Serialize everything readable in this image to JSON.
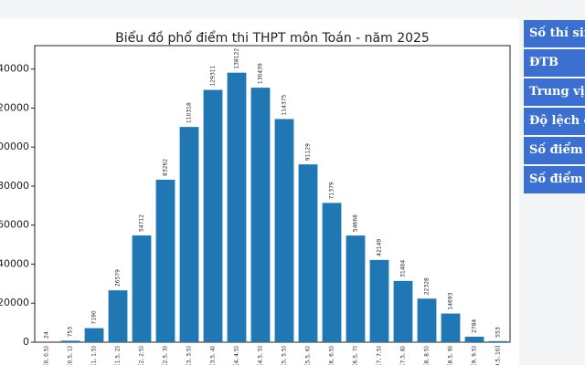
{
  "chart_data": {
    "type": "bar",
    "title": "Biểu đồ phổ điểm thi THPT môn Toán - năm 2025",
    "categories": [
      "[0, 0.5)",
      "[0.5, 1)",
      "[1, 1.5)",
      "[1.5, 2)",
      "[2, 2.5)",
      "[2.5, 3)",
      "[3, 3.5)",
      "[3.5, 4)",
      "[4, 4.5)",
      "[4.5, 5)",
      "[5, 5.5)",
      "[5.5, 6)",
      "[6, 6.5)",
      "[6.5, 7)",
      "[7, 7.5)",
      "[7.5, 8)",
      "[8, 8.5)",
      "[8.5, 9)",
      "[9, 9.5)",
      "[9.5, 10]"
    ],
    "values": [
      24,
      753,
      7190,
      26579,
      54712,
      83262,
      110318,
      129311,
      138122,
      130439,
      114375,
      91129,
      71379,
      54668,
      42149,
      31404,
      22328,
      14693,
      2784,
      553
    ],
    "color": "#1f77b4",
    "ylim": [
      0,
      152000
    ],
    "yticks": [
      0,
      20000,
      40000,
      60000,
      80000,
      100000,
      120000,
      140000
    ]
  },
  "side_table": {
    "rows": [
      "Số thí sin",
      "ĐTB",
      "Trung vị",
      "Độ lệch c",
      "Số điểm 1",
      "Số điểm 0"
    ]
  }
}
